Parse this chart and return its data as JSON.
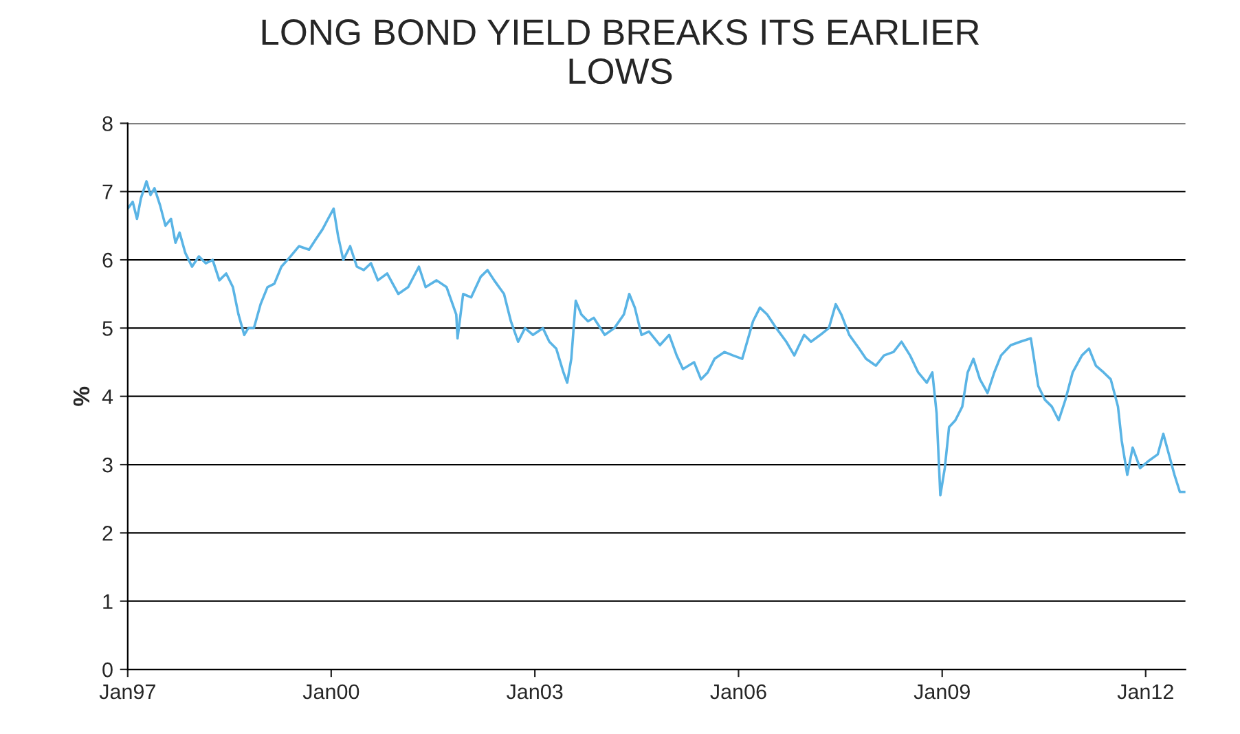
{
  "chart_data": {
    "type": "line",
    "title": "LONG BOND YIELD BREAKS ITS EARLIER\nLOWS",
    "ylabel": "%",
    "x": [
      "1997-01-01",
      "1997-01-28",
      "1997-02-20",
      "1997-03-13",
      "1997-04-12",
      "1997-05-04",
      "1997-05-25",
      "1997-06-24",
      "1997-07-23",
      "1997-08-22",
      "1997-09-15",
      "1997-10-07",
      "1997-11-07",
      "1997-12-13",
      "1998-01-19",
      "1998-02-25",
      "1998-04-03",
      "1998-05-09",
      "1998-06-15",
      "1998-07-21",
      "1998-08-20",
      "1998-09-20",
      "1998-10-12",
      "1998-11-11",
      "1998-12-17",
      "1999-01-23",
      "1999-03-01",
      "1999-04-08",
      "1999-05-27",
      "1999-07-12",
      "1999-09-04",
      "1999-10-10",
      "1999-11-16",
      "1999-12-15",
      "2000-01-14",
      "2000-02-07",
      "2000-03-06",
      "2000-04-12",
      "2000-05-18",
      "2000-06-24",
      "2000-08-02",
      "2000-09-08",
      "2000-10-28",
      "2000-12-27",
      "2001-02-18",
      "2001-04-17",
      "2001-05-23",
      "2001-07-21",
      "2001-09-13",
      "2001-11-04",
      "2001-11-11",
      "2001-12-11",
      "2002-01-23",
      "2002-03-15",
      "2002-04-21",
      "2002-05-27",
      "2002-07-19",
      "2002-08-25",
      "2002-10-03",
      "2002-11-09",
      "2002-12-22",
      "2003-02-13",
      "2003-03-20",
      "2003-04-26",
      "2003-06-04",
      "2003-06-24",
      "2003-07-16",
      "2003-08-09",
      "2003-09-08",
      "2003-10-14",
      "2003-11-14",
      "2004-01-12",
      "2004-03-04",
      "2004-04-24",
      "2004-05-23",
      "2004-06-22",
      "2004-07-28",
      "2004-09-06",
      "2004-11-04",
      "2004-12-24",
      "2005-02-02",
      "2005-03-08",
      "2005-05-07",
      "2005-06-13",
      "2005-07-19",
      "2005-08-25",
      "2005-10-17",
      "2005-12-02",
      "2006-01-21",
      "2006-03-20",
      "2006-04-26",
      "2006-06-04",
      "2006-07-23",
      "2006-09-15",
      "2006-10-28",
      "2006-12-20",
      "2007-01-26",
      "2007-03-17",
      "2007-05-02",
      "2007-06-08",
      "2007-07-08",
      "2007-08-20",
      "2007-10-12",
      "2007-11-18",
      "2008-01-10",
      "2008-02-23",
      "2008-04-14",
      "2008-05-27",
      "2008-07-12",
      "2008-08-25",
      "2008-10-10",
      "2008-11-09",
      "2008-12-02",
      "2008-12-22",
      "2009-01-15",
      "2009-02-07",
      "2009-03-13",
      "2009-04-19",
      "2009-05-18",
      "2009-06-18",
      "2009-07-23",
      "2009-09-02",
      "2009-10-08",
      "2009-11-14",
      "2010-01-05",
      "2010-02-25",
      "2010-04-23",
      "2010-06-02",
      "2010-07-08",
      "2010-08-14",
      "2010-09-20",
      "2010-10-26",
      "2010-12-04",
      "2011-01-23",
      "2011-03-02",
      "2011-04-08",
      "2011-05-20",
      "2011-06-27",
      "2011-08-05",
      "2011-08-25",
      "2011-09-24",
      "2011-10-23",
      "2011-12-02",
      "2012-01-15",
      "2012-03-06",
      "2012-04-05",
      "2012-05-05",
      "2012-06-04",
      "2012-07-03",
      "2012-08-02"
    ],
    "series": [
      {
        "color": "#5ab4e5",
        "values": [
          6.75,
          6.85,
          6.6,
          6.9,
          7.15,
          6.95,
          7.05,
          6.8,
          6.5,
          6.6,
          6.25,
          6.4,
          6.1,
          5.9,
          6.05,
          5.95,
          6.0,
          5.7,
          5.8,
          5.6,
          5.2,
          4.9,
          5.0,
          5.0,
          5.35,
          5.6,
          5.65,
          5.9,
          6.05,
          6.2,
          6.15,
          6.3,
          6.45,
          6.6,
          6.75,
          6.35,
          6.0,
          6.2,
          5.9,
          5.85,
          5.95,
          5.7,
          5.8,
          5.5,
          5.6,
          5.9,
          5.6,
          5.7,
          5.6,
          5.2,
          4.85,
          5.5,
          5.45,
          5.75,
          5.85,
          5.7,
          5.5,
          5.1,
          4.8,
          5.0,
          4.9,
          5.0,
          4.8,
          4.7,
          4.35,
          4.2,
          4.55,
          5.4,
          5.2,
          5.1,
          5.15,
          4.9,
          5.0,
          5.2,
          5.5,
          5.3,
          4.9,
          4.95,
          4.75,
          4.9,
          4.6,
          4.4,
          4.5,
          4.25,
          4.35,
          4.55,
          4.65,
          4.6,
          4.55,
          5.1,
          5.3,
          5.2,
          5.0,
          4.8,
          4.6,
          4.9,
          4.8,
          4.9,
          5.0,
          5.35,
          5.2,
          4.9,
          4.7,
          4.55,
          4.45,
          4.6,
          4.65,
          4.8,
          4.6,
          4.35,
          4.2,
          4.35,
          3.75,
          2.55,
          2.95,
          3.55,
          3.65,
          3.85,
          4.35,
          4.55,
          4.25,
          4.05,
          4.35,
          4.6,
          4.75,
          4.8,
          4.85,
          4.15,
          3.95,
          3.85,
          3.65,
          3.95,
          4.35,
          4.6,
          4.7,
          4.45,
          4.35,
          4.25,
          3.85,
          3.35,
          2.85,
          3.25,
          2.95,
          3.05,
          3.15,
          3.45,
          3.15,
          2.85,
          2.6,
          2.6
        ]
      }
    ],
    "xlim": [
      "1997-01-01",
      "2012-08-02"
    ],
    "xticks": [
      {
        "value": "1997-01-01",
        "label": "Jan97"
      },
      {
        "value": "2000-01-01",
        "label": "Jan00"
      },
      {
        "value": "2003-01-01",
        "label": "Jan03"
      },
      {
        "value": "2006-01-01",
        "label": "Jan06"
      },
      {
        "value": "2009-01-01",
        "label": "Jan09"
      },
      {
        "value": "2012-01-01",
        "label": "Jan12"
      }
    ],
    "ylim": [
      0,
      8
    ],
    "yticks": [
      0,
      1,
      2,
      3,
      4,
      5,
      6,
      7,
      8
    ],
    "grid": "y",
    "line_style": "solid",
    "legend": false
  }
}
